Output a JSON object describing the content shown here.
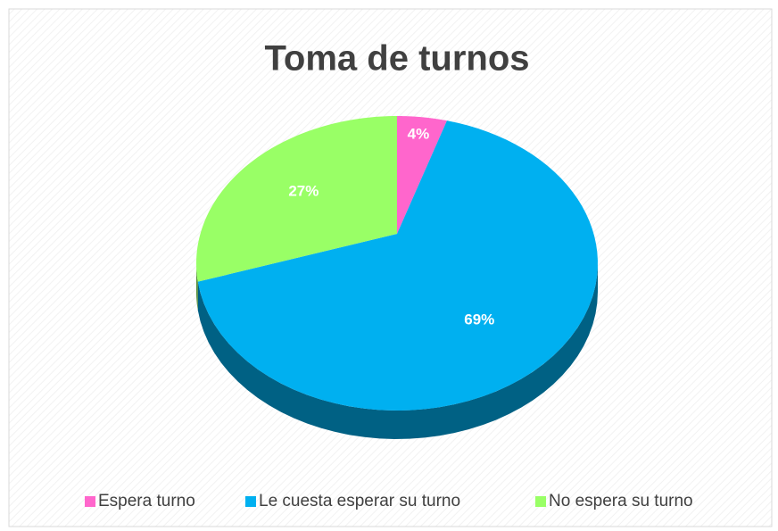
{
  "chart_data": {
    "type": "pie",
    "title": "Toma de turnos",
    "categories": [
      "Espera turno",
      "Le cuesta esperar su turno",
      "No espera su turno"
    ],
    "values": [
      4,
      69,
      27
    ],
    "value_labels": [
      "4%",
      "69%",
      "27%"
    ],
    "colors": [
      "#ff66cc",
      "#00b0f0",
      "#99ff66"
    ],
    "legend": "bottom"
  }
}
